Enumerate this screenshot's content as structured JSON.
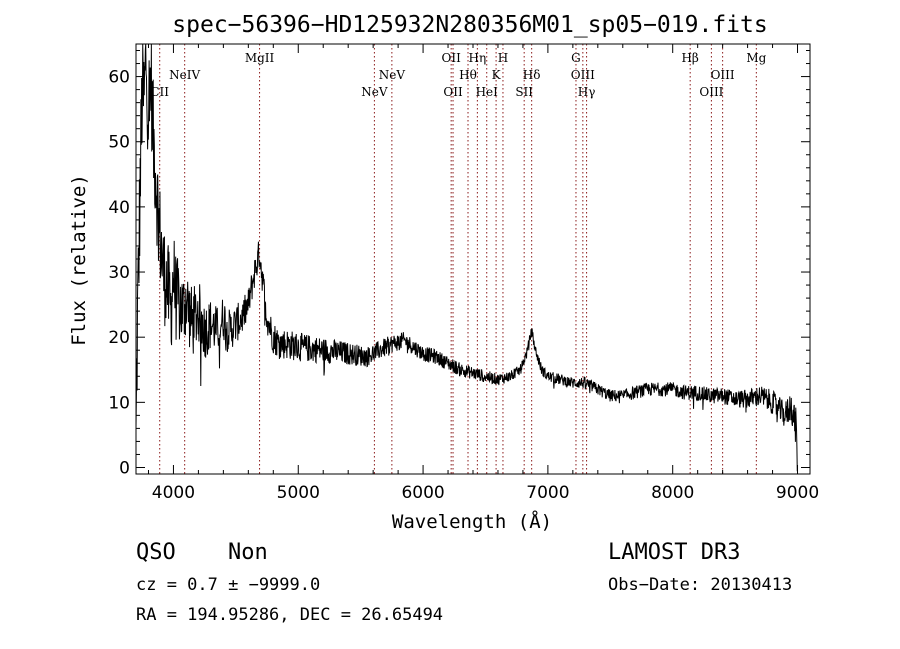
{
  "chart_data": {
    "type": "line",
    "title": "spec−56396−HD125932N280356M01_sp05−019.fits",
    "xlabel": "Wavelength (Å)",
    "ylabel": "Flux (relative)",
    "xlim": [
      3700,
      9100
    ],
    "ylim": [
      -1,
      65
    ],
    "x_ticks": [
      4000,
      5000,
      6000,
      7000,
      8000,
      9000
    ],
    "y_ticks": [
      0,
      10,
      20,
      30,
      40,
      50,
      60
    ],
    "grid": false,
    "series": [
      {
        "name": "flux",
        "anchors": [
          [
            3700,
            3
          ],
          [
            3710,
            20
          ],
          [
            3720,
            30
          ],
          [
            3735,
            45
          ],
          [
            3750,
            58
          ],
          [
            3765,
            56
          ],
          [
            3780,
            63
          ],
          [
            3800,
            55
          ],
          [
            3820,
            60
          ],
          [
            3840,
            50
          ],
          [
            3860,
            45
          ],
          [
            3880,
            38
          ],
          [
            3900,
            34
          ],
          [
            3920,
            30
          ],
          [
            3950,
            28
          ],
          [
            3980,
            24
          ],
          [
            4000,
            30
          ],
          [
            4020,
            26
          ],
          [
            4050,
            25
          ],
          [
            4080,
            24
          ],
          [
            4100,
            26
          ],
          [
            4150,
            22
          ],
          [
            4200,
            24
          ],
          [
            4250,
            21
          ],
          [
            4300,
            22
          ],
          [
            4350,
            21
          ],
          [
            4400,
            23
          ],
          [
            4450,
            21
          ],
          [
            4500,
            22
          ],
          [
            4550,
            23
          ],
          [
            4600,
            25
          ],
          [
            4650,
            30
          ],
          [
            4690,
            33
          ],
          [
            4720,
            28
          ],
          [
            4750,
            23
          ],
          [
            4800,
            20
          ],
          [
            4850,
            19
          ],
          [
            4900,
            19
          ],
          [
            5000,
            18.5
          ],
          [
            5200,
            18
          ],
          [
            5400,
            17.5
          ],
          [
            5550,
            17
          ],
          [
            5650,
            18
          ],
          [
            5750,
            19
          ],
          [
            5850,
            19.5
          ],
          [
            6000,
            17.5
          ],
          [
            6100,
            17
          ],
          [
            6200,
            16
          ],
          [
            6300,
            15
          ],
          [
            6400,
            14.5
          ],
          [
            6500,
            14
          ],
          [
            6600,
            13.5
          ],
          [
            6700,
            14
          ],
          [
            6780,
            15
          ],
          [
            6830,
            17.5
          ],
          [
            6870,
            21
          ],
          [
            6900,
            18
          ],
          [
            6950,
            15
          ],
          [
            7000,
            14
          ],
          [
            7100,
            13.5
          ],
          [
            7200,
            13
          ],
          [
            7300,
            13
          ],
          [
            7400,
            12
          ],
          [
            7500,
            11
          ],
          [
            7600,
            11
          ],
          [
            7700,
            11.5
          ],
          [
            7800,
            12
          ],
          [
            7900,
            12
          ],
          [
            8000,
            12
          ],
          [
            8100,
            11.5
          ],
          [
            8200,
            11.5
          ],
          [
            8300,
            11
          ],
          [
            8400,
            11
          ],
          [
            8500,
            10.5
          ],
          [
            8600,
            10.5
          ],
          [
            8700,
            11
          ],
          [
            8800,
            10
          ],
          [
            8850,
            9
          ],
          [
            8900,
            8
          ],
          [
            8950,
            9.5
          ],
          [
            8990,
            6
          ],
          [
            9000,
            0
          ]
        ],
        "noise": [
          [
            3700,
            10
          ],
          [
            3900,
            8
          ],
          [
            4100,
            6
          ],
          [
            4300,
            4
          ],
          [
            4600,
            2.5
          ],
          [
            4800,
            2.5
          ],
          [
            5600,
            1.5
          ],
          [
            6000,
            1.2
          ],
          [
            6800,
            0.8
          ],
          [
            7300,
            0.9
          ],
          [
            8000,
            1.1
          ],
          [
            8500,
            1.3
          ],
          [
            8900,
            2
          ],
          [
            9000,
            3
          ]
        ]
      }
    ],
    "lines": [
      {
        "name": "CII",
        "wavelength": 3890,
        "label": "CII",
        "row": 2
      },
      {
        "name": "NeIV",
        "wavelength": 4090,
        "label": "NeIV",
        "row": 1
      },
      {
        "name": "MgII",
        "wavelength": 4690,
        "label": "MgII",
        "row": 0
      },
      {
        "name": "NeV-1",
        "wavelength": 5610,
        "label": "NeV",
        "row": 2
      },
      {
        "name": "NeV-2",
        "wavelength": 5750,
        "label": "NeV",
        "row": 1
      },
      {
        "name": "OII-1",
        "wavelength": 6225,
        "label": "OII",
        "row": 0
      },
      {
        "name": "OII-2",
        "wavelength": 6240,
        "label": "OII",
        "row": 2
      },
      {
        "name": "Htheta",
        "wavelength": 6360,
        "label": "Hθ",
        "row": 1
      },
      {
        "name": "Heta",
        "wavelength": 6435,
        "label": "Hη",
        "row": 0
      },
      {
        "name": "HeI",
        "wavelength": 6510,
        "label": "HeI",
        "row": 2
      },
      {
        "name": "K",
        "wavelength": 6585,
        "label": "K",
        "row": 1
      },
      {
        "name": "H",
        "wavelength": 6640,
        "label": "H",
        "row": 0
      },
      {
        "name": "SII",
        "wavelength": 6810,
        "label": "SII",
        "row": 2
      },
      {
        "name": "Hdelta",
        "wavelength": 6870,
        "label": "Hδ",
        "row": 1
      },
      {
        "name": "G",
        "wavelength": 7225,
        "label": "G",
        "row": 0
      },
      {
        "name": "OIII-1",
        "wavelength": 7280,
        "label": "OIII",
        "row": 1
      },
      {
        "name": "Hgamma",
        "wavelength": 7310,
        "label": "Hγ",
        "row": 2
      },
      {
        "name": "Hbeta",
        "wavelength": 8140,
        "label": "Hβ",
        "row": 0
      },
      {
        "name": "OIII-2",
        "wavelength": 8310,
        "label": "OIII",
        "row": 2
      },
      {
        "name": "OIII-3",
        "wavelength": 8400,
        "label": "OIII",
        "row": 1
      },
      {
        "name": "Mg",
        "wavelength": 8670,
        "label": "Mg",
        "row": 0
      }
    ],
    "line_color": "#8b1a1a",
    "flux_color": "#000000"
  },
  "info": {
    "class": "QSO",
    "subclass": "Non",
    "cz": "cz = 0.7 ± −9999.0",
    "radec": "RA = 194.95286, DEC =  26.65494",
    "survey": "LAMOST DR3",
    "obs_date": "Obs−Date: 20130413"
  }
}
